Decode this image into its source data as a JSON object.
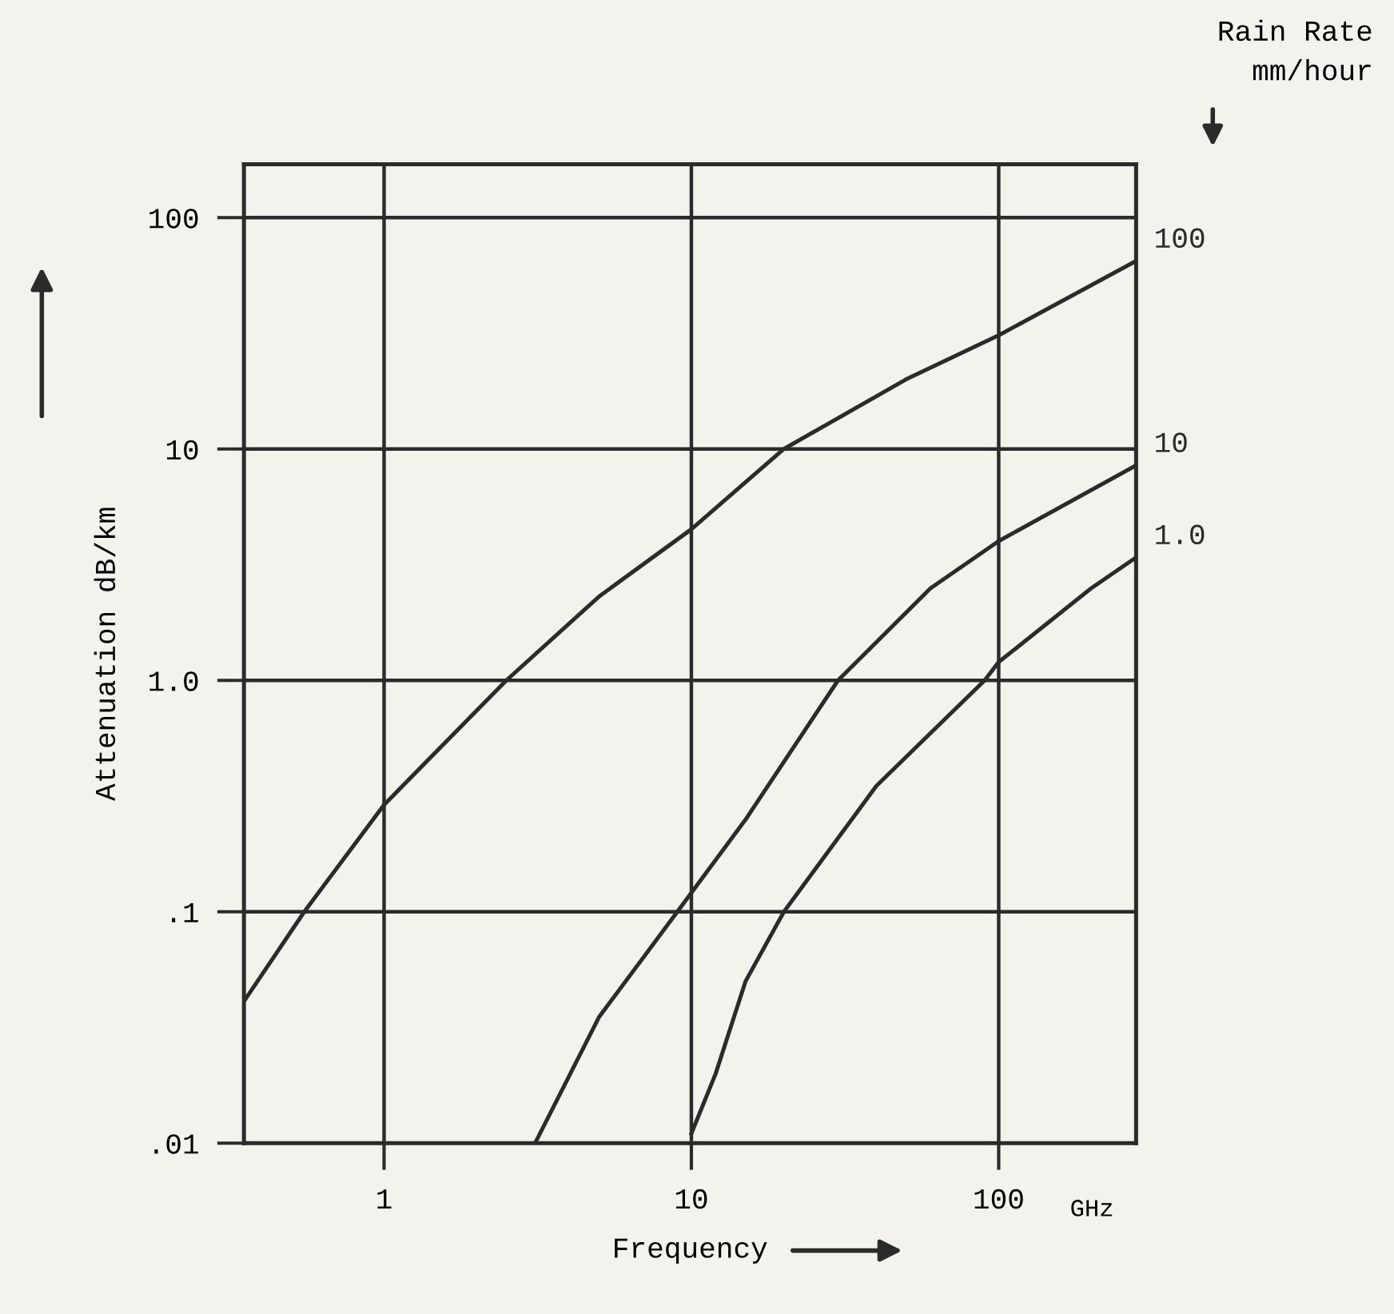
{
  "chart_data": {
    "type": "line",
    "xlabel": "Frequency",
    "ylabel": "Attenuation dB/km",
    "legend_title": "Rain Rate\nmm/hour",
    "annotations": [
      "GHz"
    ],
    "log": "xy",
    "grid": true,
    "xlim": [
      0.35,
      280
    ],
    "ylim": [
      0.01,
      170
    ],
    "xticks": [
      1,
      10,
      100
    ],
    "yticks": [
      {
        "value": 0.01,
        "label": ".01"
      },
      {
        "value": 0.1,
        "label": ".1"
      },
      {
        "value": 1,
        "label": "1.0"
      },
      10,
      100
    ],
    "series": [
      {
        "name": "100",
        "color": "#2b2b2b",
        "x": [
          0.35,
          0.55,
          1,
          2.5,
          5,
          10,
          20,
          50,
          100,
          280
        ],
        "values": [
          0.041,
          0.1,
          0.29,
          1.0,
          2.3,
          4.5,
          10,
          20,
          31,
          65
        ]
      },
      {
        "name": "10",
        "color": "#2b2b2b",
        "x": [
          3.1,
          5,
          9,
          15,
          30,
          60,
          100,
          280
        ],
        "values": [
          0.01,
          0.035,
          0.1,
          0.25,
          1.0,
          2.5,
          4.0,
          8.5
        ]
      },
      {
        "name": "1.0",
        "color": "#2b2b2b",
        "x": [
          10,
          12,
          15,
          20,
          40,
          90,
          100,
          200,
          280
        ],
        "values": [
          0.011,
          0.02,
          0.05,
          0.1,
          0.35,
          1.0,
          1.2,
          2.5,
          3.4
        ]
      }
    ]
  }
}
